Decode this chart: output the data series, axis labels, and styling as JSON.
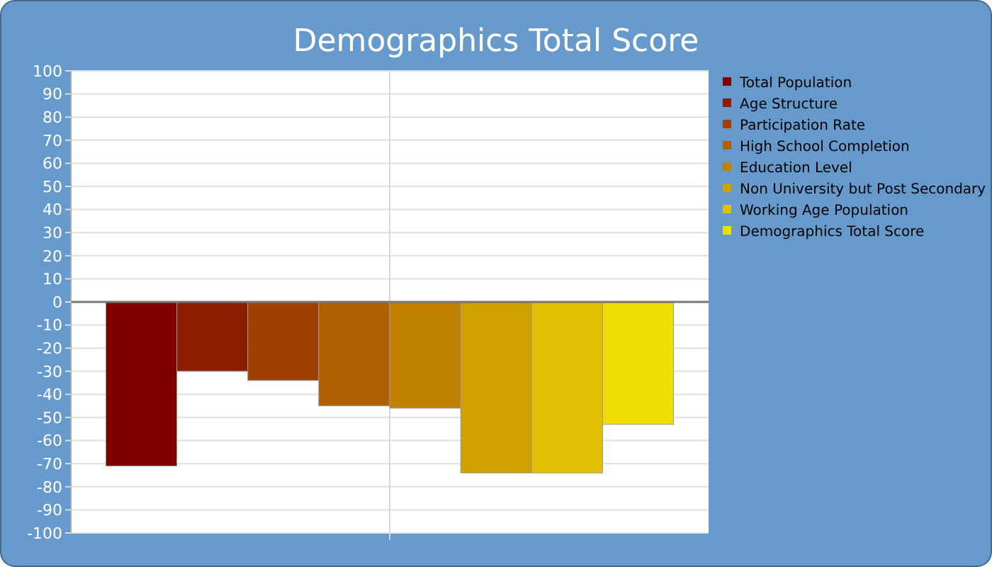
{
  "chart_data": {
    "type": "bar",
    "title": "Demographics Total Score",
    "categories": [
      null
    ],
    "series": [
      {
        "name": "Total Population",
        "color": "#800000",
        "values": [
          -71
        ]
      },
      {
        "name": "Age Structure",
        "color": "#8b1e00",
        "values": [
          -30
        ]
      },
      {
        "name": "Participation Rate",
        "color": "#a04000",
        "values": [
          -34
        ]
      },
      {
        "name": "High School Completion",
        "color": "#b06000",
        "values": [
          -45
        ]
      },
      {
        "name": "Education Level",
        "color": "#c08000",
        "values": [
          -46
        ]
      },
      {
        "name": "Non University but Post Secondary",
        "color": "#d0a000",
        "values": [
          -74
        ]
      },
      {
        "name": "Working Age Population",
        "color": "#e0c000",
        "values": [
          -74
        ]
      },
      {
        "name": "Demographics Total Score",
        "color": "#eedd00",
        "values": [
          -53
        ]
      }
    ],
    "ylim": [
      -100,
      100
    ],
    "yticks": [
      -100,
      -90,
      -80,
      -70,
      -60,
      -50,
      -40,
      -30,
      -20,
      -10,
      0,
      10,
      20,
      30,
      40,
      50,
      60,
      70,
      80,
      90,
      100
    ],
    "grid": true,
    "legend": "right"
  }
}
